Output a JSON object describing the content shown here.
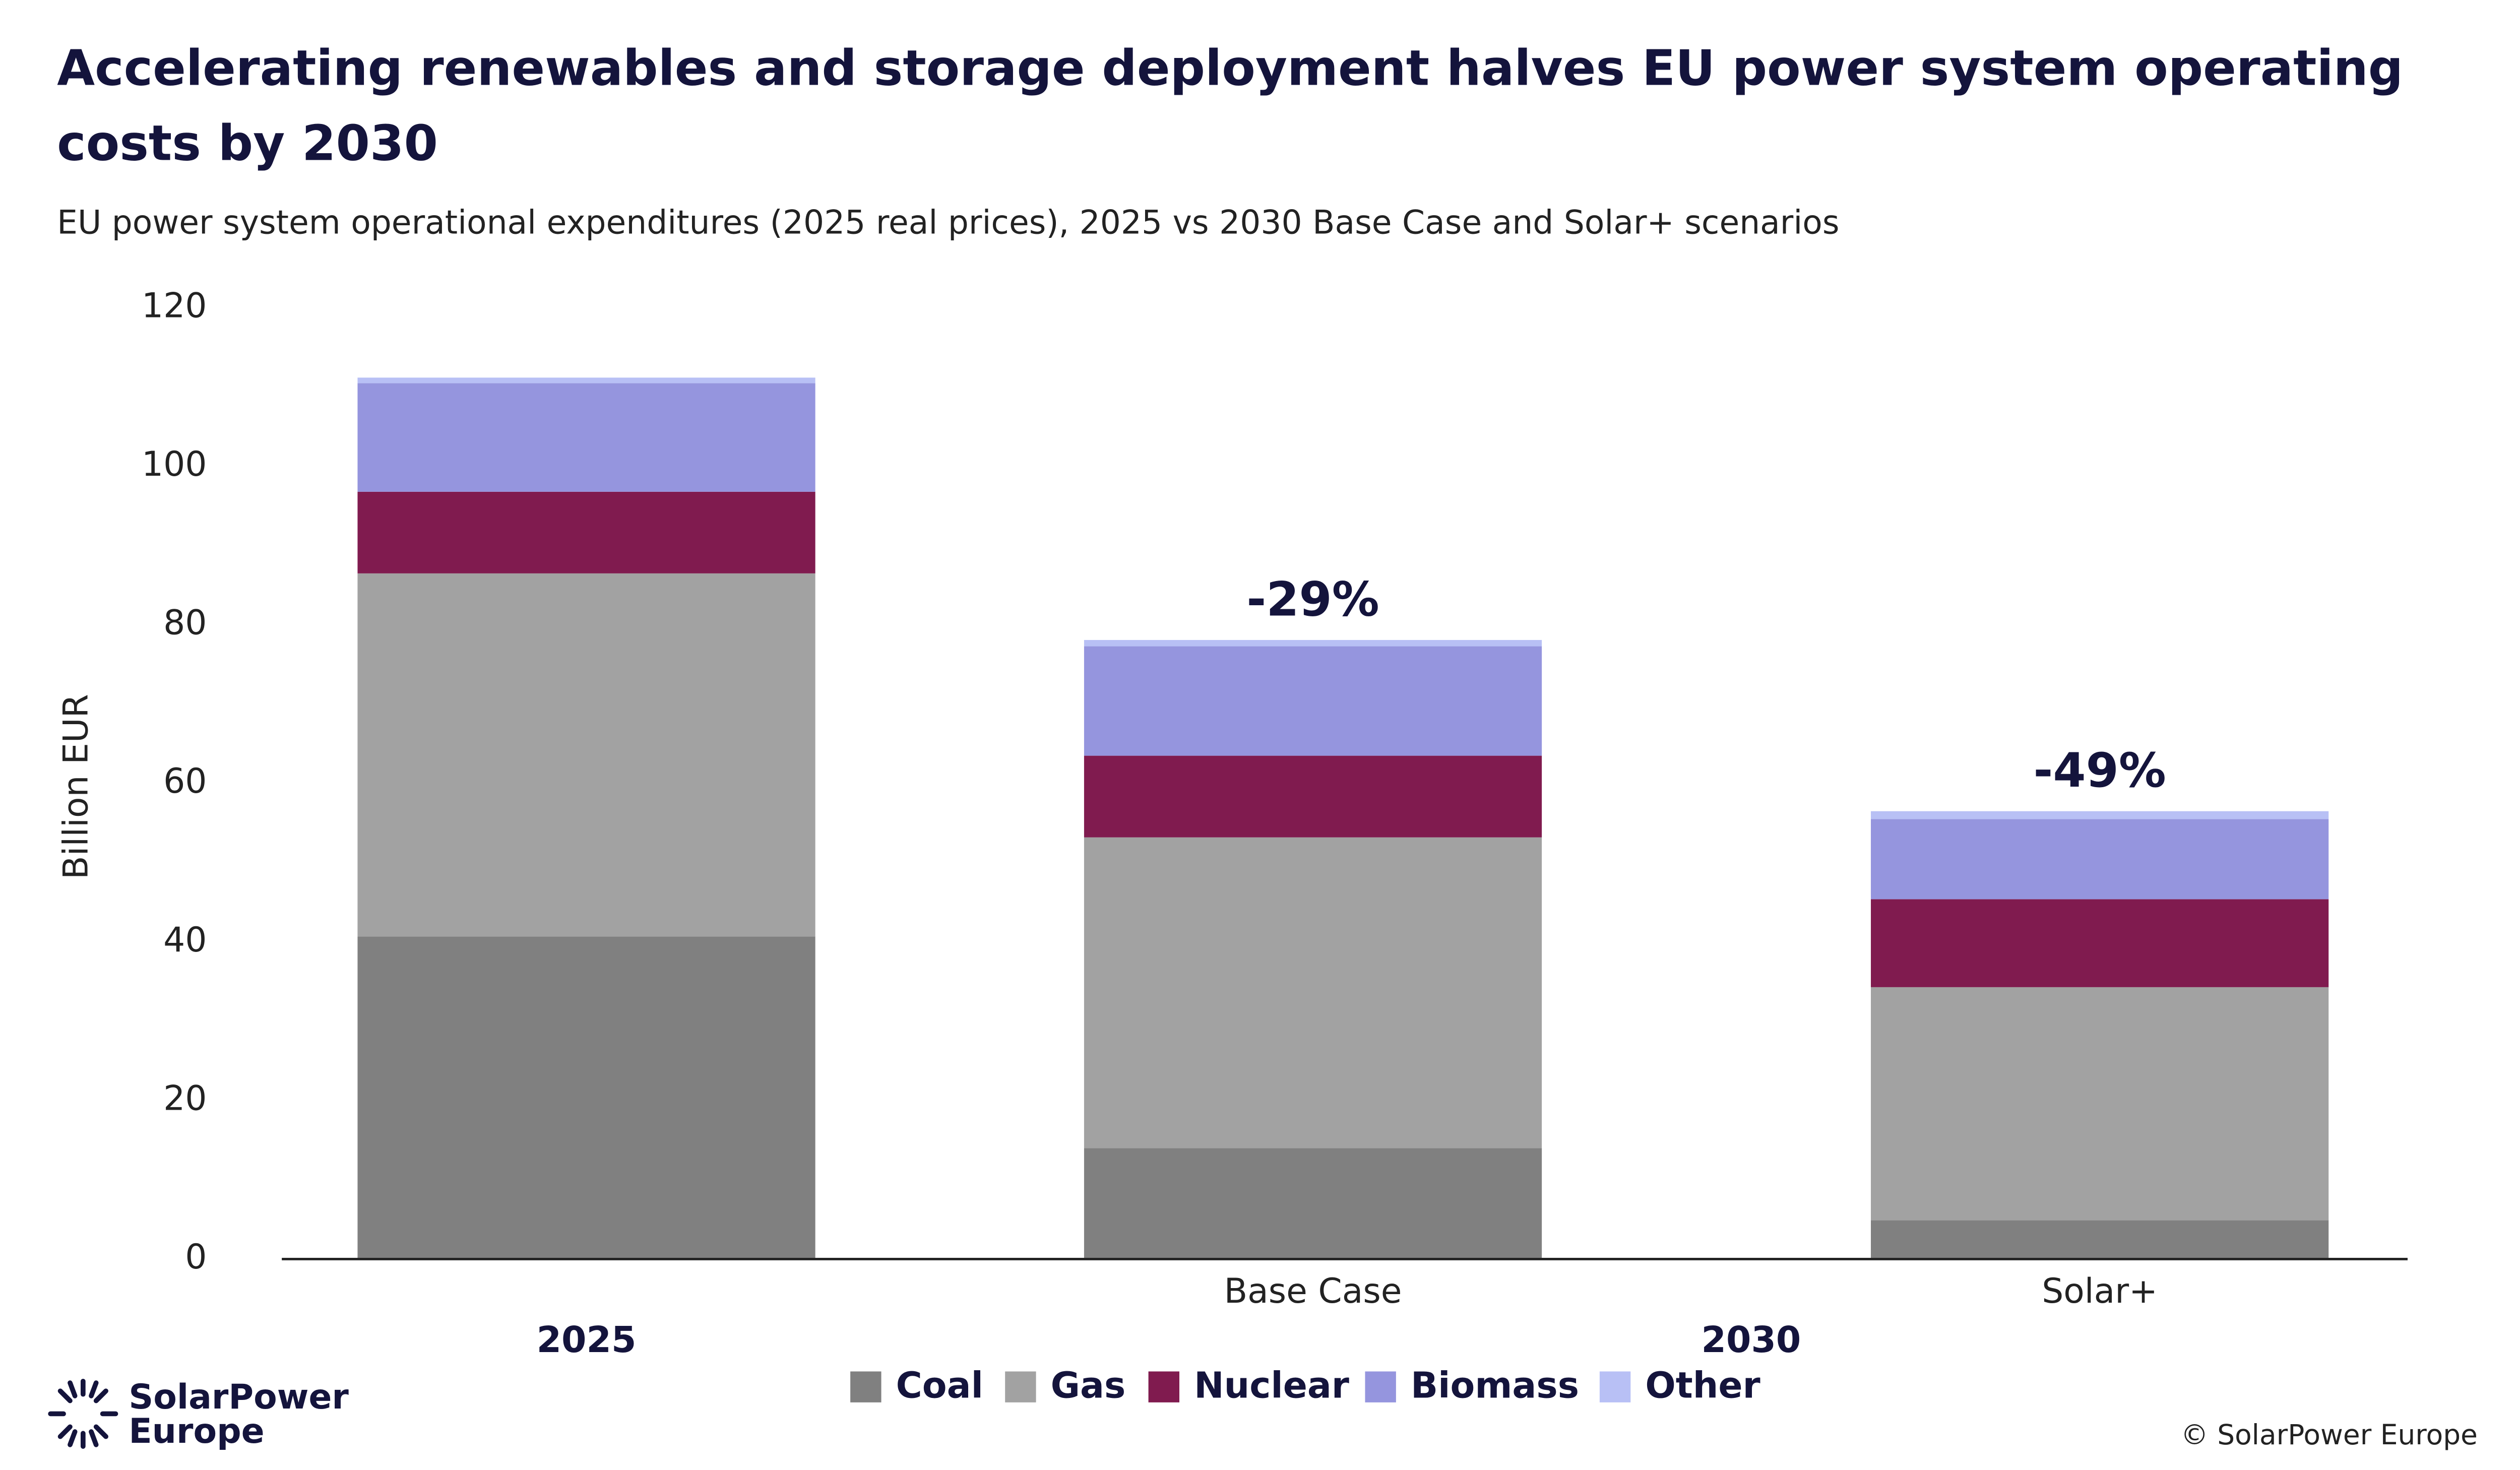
{
  "chart_data": {
    "type": "stacked_bar",
    "title": [
      "Accelerating renewables and storage deployment halves EU power system operating",
      "costs by 2030"
    ],
    "subtitle": "EU power system operational expenditures (2025 real prices), 2025 vs 2030 Base Case and Solar+ scenarios",
    "y_label": "Billion EUR",
    "categories": [
      null,
      "Base Case",
      "Solar+"
    ],
    "group_labels": [
      "2025",
      "2030"
    ],
    "bar_labels": [
      null,
      "-29%",
      "-49%"
    ],
    "series": [
      {
        "name": "Coal",
        "color": "#808080",
        "values": [
          40.7,
          14.0,
          4.9
        ]
      },
      {
        "name": "Gas",
        "color": "#a2a2a2",
        "values": [
          45.8,
          39.2,
          29.4
        ]
      },
      {
        "name": "Nuclear",
        "color": "#801b4f",
        "values": [
          10.3,
          10.3,
          11.1
        ]
      },
      {
        "name": "Biomass",
        "color": "#9595de",
        "values": [
          13.7,
          13.8,
          10.1
        ]
      },
      {
        "name": "Other",
        "color": "#b8c0f5",
        "values": [
          0.7,
          0.8,
          1.0
        ]
      }
    ],
    "ylim": [
      0,
      120
    ],
    "yticks": [
      0,
      20,
      40,
      60,
      80,
      100,
      120
    ],
    "grid": false,
    "legend": "bottom"
  },
  "logo": {
    "line1": "SolarPower",
    "line2": "Europe"
  },
  "credit": "© SolarPower Europe"
}
